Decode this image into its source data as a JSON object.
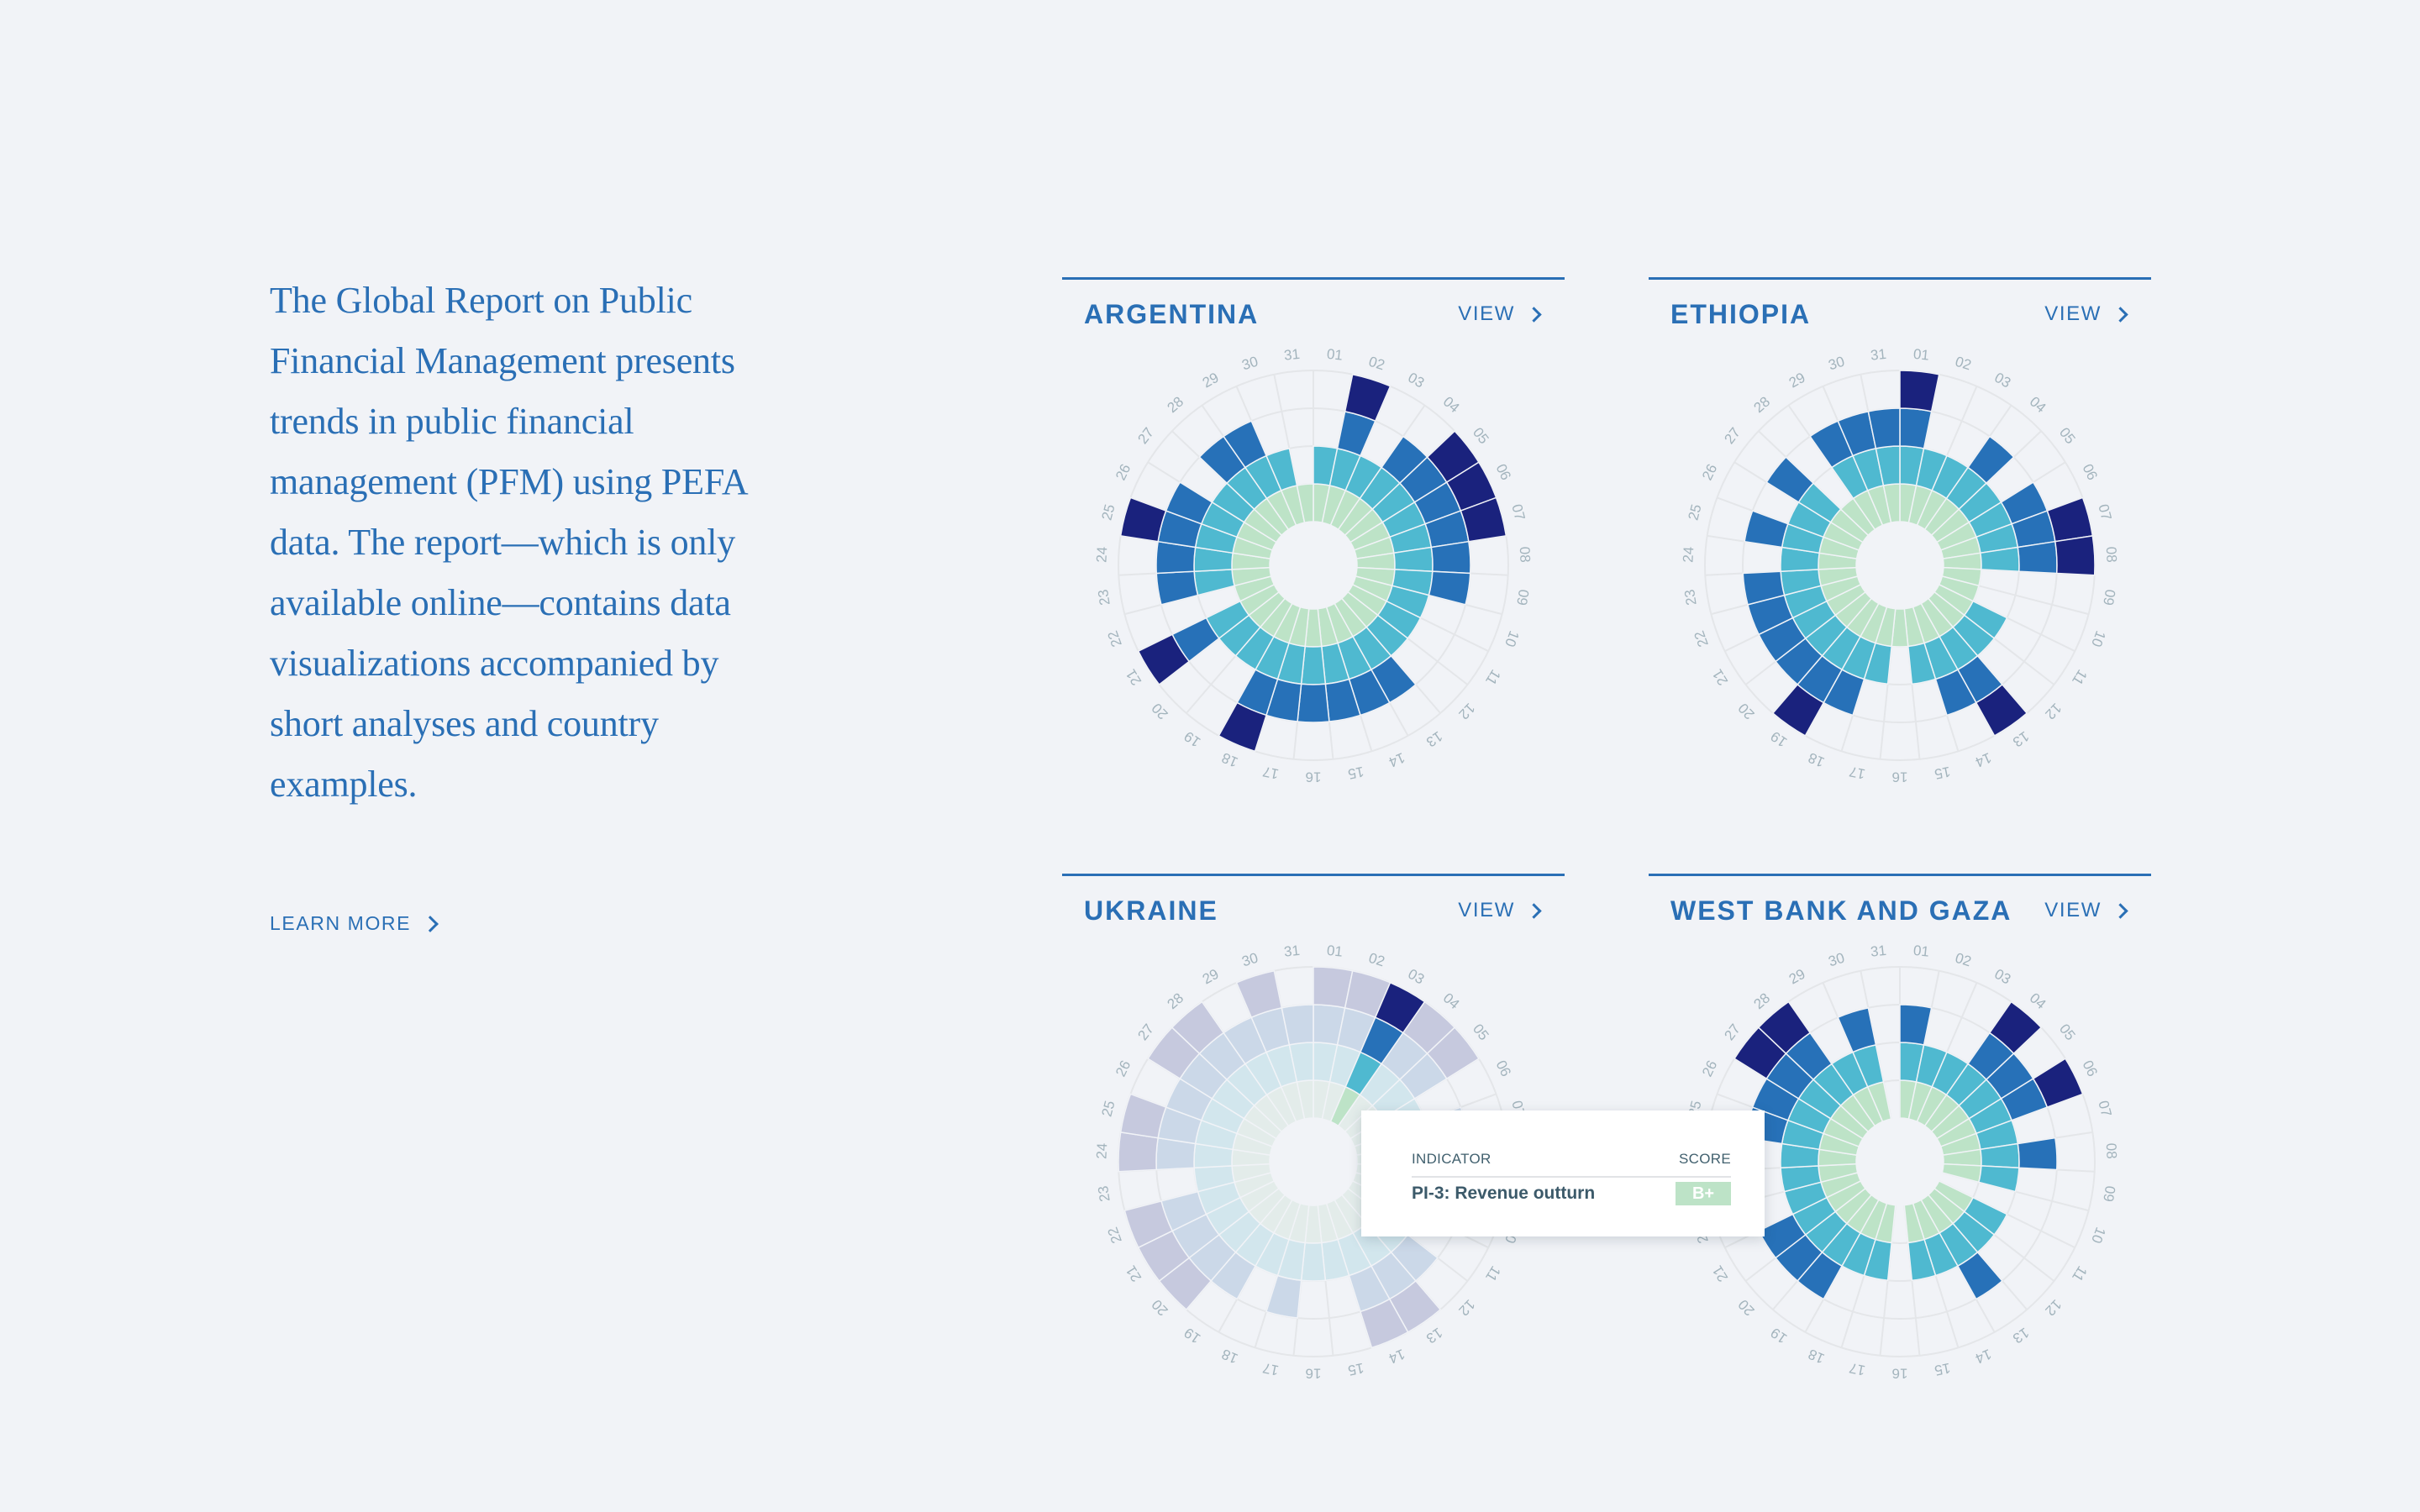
{
  "intro": {
    "lines": [
      "The Global Report on Public",
      "Financial Management presents",
      "trends in public financial",
      "management (PFM) using PEFA",
      "data. The report—which is only",
      "available online—contains data",
      "visualizations accompanied by",
      "short analyses and country",
      "examples."
    ],
    "learn_more_label": "LEARN MORE",
    "learn_more_icon": "chevron-right-icon"
  },
  "colors": {
    "background": "#f1f3f7",
    "accent": "#2a6fb5",
    "grid": "#e4e6e9",
    "tick_label": "#a3b4bd",
    "levels": [
      "#bde3c7",
      "#4fb9d0",
      "#2771b8",
      "#1a227d"
    ],
    "levels_faded": [
      "#e3ecea",
      "#d2e6ed",
      "#cbd8e8",
      "#c6c9de"
    ]
  },
  "cards": [
    {
      "title": "ARGENTINA",
      "view_label": "VIEW",
      "view_icon": "chevron-right-icon"
    },
    {
      "title": "ETHIOPIA",
      "view_label": "VIEW",
      "view_icon": "chevron-right-icon"
    },
    {
      "title": "UKRAINE",
      "view_label": "VIEW",
      "view_icon": "chevron-right-icon"
    },
    {
      "title": "WEST BANK AND GAZA",
      "view_label": "VIEW",
      "view_icon": "chevron-right-icon"
    }
  ],
  "tooltip": {
    "indicator_header": "INDICATOR",
    "score_header": "SCORE",
    "indicator": "PI-3: Revenue outturn",
    "score": "B+"
  },
  "chart_data": [
    {
      "type": "radial-stacked-bar",
      "title": "ARGENTINA",
      "categories": [
        "01",
        "02",
        "03",
        "04",
        "05",
        "06",
        "07",
        "08",
        "09",
        "10",
        "11",
        "12",
        "13",
        "14",
        "15",
        "16",
        "17",
        "18",
        "19",
        "20",
        "21",
        "22",
        "23",
        "24",
        "25",
        "26",
        "27",
        "28",
        "29",
        "30",
        "31"
      ],
      "values": [
        2,
        4,
        2,
        3,
        4,
        4,
        4,
        3,
        3,
        2,
        2,
        2,
        3,
        3,
        3,
        3,
        3,
        4,
        2,
        2,
        4,
        1,
        3,
        3,
        4,
        3,
        2,
        3,
        3,
        2,
        1
      ],
      "ylim": [
        0,
        4
      ],
      "highlight": null
    },
    {
      "type": "radial-stacked-bar",
      "title": "ETHIOPIA",
      "categories": [
        "01",
        "02",
        "03",
        "04",
        "05",
        "06",
        "07",
        "08",
        "09",
        "10",
        "11",
        "12",
        "13",
        "14",
        "15",
        "16",
        "17",
        "18",
        "19",
        "20",
        "21",
        "22",
        "23",
        "24",
        "25",
        "26",
        "27",
        "28",
        "29",
        "30",
        "31"
      ],
      "values": [
        4,
        2,
        2,
        3,
        2,
        3,
        4,
        4,
        1,
        1,
        2,
        2,
        4,
        3,
        2,
        1,
        2,
        3,
        4,
        3,
        3,
        3,
        3,
        2,
        3,
        2,
        3,
        1,
        3,
        3,
        3
      ],
      "ylim": [
        0,
        4
      ],
      "highlight": null
    },
    {
      "type": "radial-stacked-bar",
      "title": "UKRAINE",
      "categories": [
        "01",
        "02",
        "03",
        "04",
        "05",
        "06",
        "07",
        "08",
        "09",
        "10",
        "11",
        "12",
        "13",
        "14",
        "15",
        "16",
        "17",
        "18",
        "19",
        "20",
        "21",
        "22",
        "23",
        "24",
        "25",
        "26",
        "27",
        "28",
        "29",
        "30",
        "31"
      ],
      "values": [
        4,
        4,
        4,
        4,
        4,
        2,
        3,
        3,
        3,
        2,
        2,
        3,
        4,
        4,
        2,
        2,
        3,
        2,
        3,
        4,
        4,
        4,
        2,
        4,
        4,
        3,
        4,
        4,
        3,
        4,
        3
      ],
      "ylim": [
        0,
        4
      ],
      "highlight": 2
    },
    {
      "type": "radial-stacked-bar",
      "title": "WEST BANK AND GAZA",
      "categories": [
        "01",
        "02",
        "03",
        "04",
        "05",
        "06",
        "07",
        "08",
        "09",
        "10",
        "11",
        "12",
        "13",
        "14",
        "15",
        "16",
        "17",
        "18",
        "19",
        "20",
        "21",
        "22",
        "23",
        "24",
        "25",
        "26",
        "27",
        "28",
        "29",
        "30",
        "31"
      ],
      "values": [
        3,
        2,
        2,
        4,
        3,
        4,
        2,
        3,
        2,
        0,
        2,
        2,
        3,
        2,
        2,
        0,
        2,
        2,
        3,
        3,
        3,
        2,
        2,
        2,
        3,
        3,
        4,
        4,
        2,
        3,
        0
      ],
      "ylim": [
        0,
        4
      ],
      "highlight": null
    }
  ]
}
